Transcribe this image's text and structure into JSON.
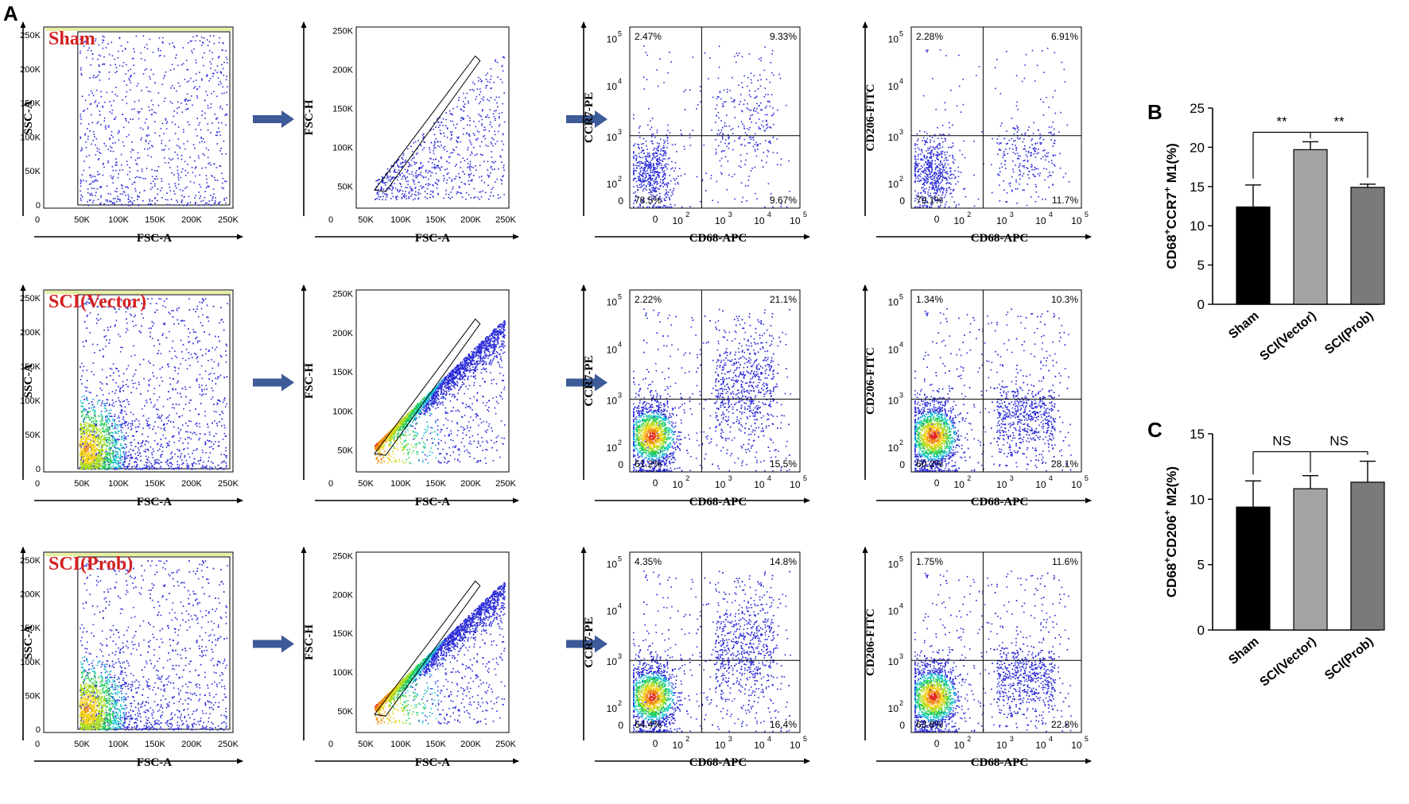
{
  "panel_letters": {
    "a": "A",
    "b": "B",
    "c": "C"
  },
  "colors": {
    "arrow": "#3d5a99",
    "group_label": "#d42020",
    "bar_sham": "#000000",
    "bar_vector": "#a3a3a3",
    "bar_prob": "#7a7a7a"
  },
  "chart_data": [
    {
      "type": "bar",
      "panel": "B",
      "categories": [
        "Sham",
        "SCI(Vector)",
        "SCI(Prob)"
      ],
      "values": [
        12.4,
        19.7,
        14.9
      ],
      "errors": [
        2.8,
        1.0,
        0.4
      ],
      "ylabel_parts": [
        "CD68",
        "+",
        "CCR7",
        "+",
        " M1(%)"
      ],
      "ylim": [
        0,
        25
      ],
      "yticks": [
        "0",
        "5",
        "10",
        "15",
        "20",
        "25"
      ],
      "significance": [
        {
          "pair": [
            "Sham",
            "SCI(Vector)"
          ],
          "label": "**"
        },
        {
          "pair": [
            "SCI(Vector)",
            "SCI(Prob)"
          ],
          "label": "**"
        }
      ]
    },
    {
      "type": "bar",
      "panel": "C",
      "categories": [
        "Sham",
        "SCI(Vector)",
        "SCI(Prob)"
      ],
      "values": [
        9.4,
        10.8,
        11.3
      ],
      "errors": [
        2.0,
        1.0,
        1.6
      ],
      "ylabel_parts": [
        "CD68",
        "+",
        "CD206",
        "+",
        " M2(%)"
      ],
      "ylim": [
        0,
        15
      ],
      "yticks": [
        "0",
        "5",
        "10",
        "15"
      ],
      "significance": [
        {
          "pair": [
            "Sham",
            "SCI(Vector)"
          ],
          "label": "NS"
        },
        {
          "pair": [
            "SCI(Vector)",
            "SCI(Prob)"
          ],
          "label": "NS"
        }
      ]
    },
    {
      "type": "scatter",
      "panel": "A",
      "description_kind": "flow-cytometry",
      "rows": [
        {
          "group": "Sham",
          "density": 0.15,
          "plots": [
            {
              "kind": "fsc-ssc",
              "xlabel": "FSC-A",
              "ylabel": "SSC-A",
              "xticks": [
                "0",
                "50K",
                "100K",
                "150K",
                "200K",
                "250K"
              ],
              "yticks": [
                "0",
                "50K",
                "100K",
                "150K",
                "200K",
                "250K"
              ]
            },
            {
              "kind": "fsc-singlet",
              "xlabel": "FSC-A",
              "ylabel": "FSC-H",
              "xticks": [
                "0",
                "50K",
                "100K",
                "150K",
                "200K",
                "250K"
              ],
              "yticks": [
                "50K",
                "100K",
                "150K",
                "200K",
                "250K"
              ]
            },
            {
              "kind": "quadrant",
              "xlabel": "CD68-APC",
              "ylabel": "CCR7-PE",
              "quadrants": {
                "ul": "2.47%",
                "ur": "9.33%",
                "ll": "78.5%",
                "lr": "9.67%"
              }
            },
            {
              "kind": "quadrant",
              "xlabel": "CD68-APC",
              "ylabel": "CD206-FITC",
              "quadrants": {
                "ul": "2.28%",
                "ur": "6.91%",
                "ll": "79.1%",
                "lr": "11.7%"
              }
            }
          ]
        },
        {
          "group": "SCI(Vector)",
          "density": 1.0,
          "plots": [
            {
              "kind": "fsc-ssc",
              "xlabel": "FSC-A",
              "ylabel": "SSC-A",
              "xticks": [
                "0",
                "50K",
                "100K",
                "150K",
                "200K",
                "250K"
              ],
              "yticks": [
                "0",
                "50K",
                "100K",
                "150K",
                "200K",
                "250K"
              ]
            },
            {
              "kind": "fsc-singlet",
              "xlabel": "FSC-A",
              "ylabel": "FSC-H",
              "xticks": [
                "0",
                "50K",
                "100K",
                "150K",
                "200K",
                "250K"
              ],
              "yticks": [
                "50K",
                "100K",
                "150K",
                "200K",
                "250K"
              ]
            },
            {
              "kind": "quadrant",
              "xlabel": "CD68-APC",
              "ylabel": "CCR7-PE",
              "quadrants": {
                "ul": "2.22%",
                "ur": "21.1%",
                "ll": "61.2%",
                "lr": "15.5%"
              }
            },
            {
              "kind": "quadrant",
              "xlabel": "CD68-APC",
              "ylabel": "CD206-FITC",
              "quadrants": {
                "ul": "1.34%",
                "ur": "10.3%",
                "ll": "60.2%",
                "lr": "28.1%"
              }
            }
          ]
        },
        {
          "group": "SCI(Prob)",
          "density": 0.95,
          "plots": [
            {
              "kind": "fsc-ssc",
              "xlabel": "FSC-A",
              "ylabel": "SSC-A",
              "xticks": [
                "0",
                "50K",
                "100K",
                "150K",
                "200K",
                "250K"
              ],
              "yticks": [
                "0",
                "50K",
                "100K",
                "150K",
                "200K",
                "250K"
              ]
            },
            {
              "kind": "fsc-singlet",
              "xlabel": "FSC-A",
              "ylabel": "FSC-H",
              "xticks": [
                "0",
                "50K",
                "100K",
                "150K",
                "200K",
                "250K"
              ],
              "yticks": [
                "50K",
                "100K",
                "150K",
                "200K",
                "250K"
              ]
            },
            {
              "kind": "quadrant",
              "xlabel": "CD68-APC",
              "ylabel": "CCR7-PE",
              "quadrants": {
                "ul": "4.35%",
                "ur": "14.8%",
                "ll": "64.4%",
                "lr": "16.4%"
              }
            },
            {
              "kind": "quadrant",
              "xlabel": "CD68-APC",
              "ylabel": "CD206-FITC",
              "quadrants": {
                "ul": "1.75%",
                "ur": "11.6%",
                "ll": "63.8%",
                "lr": "22.8%"
              }
            }
          ]
        }
      ],
      "log_ticks": [
        "0",
        "10",
        "2",
        "10",
        "3",
        "10",
        "4",
        "10",
        "5"
      ]
    }
  ]
}
